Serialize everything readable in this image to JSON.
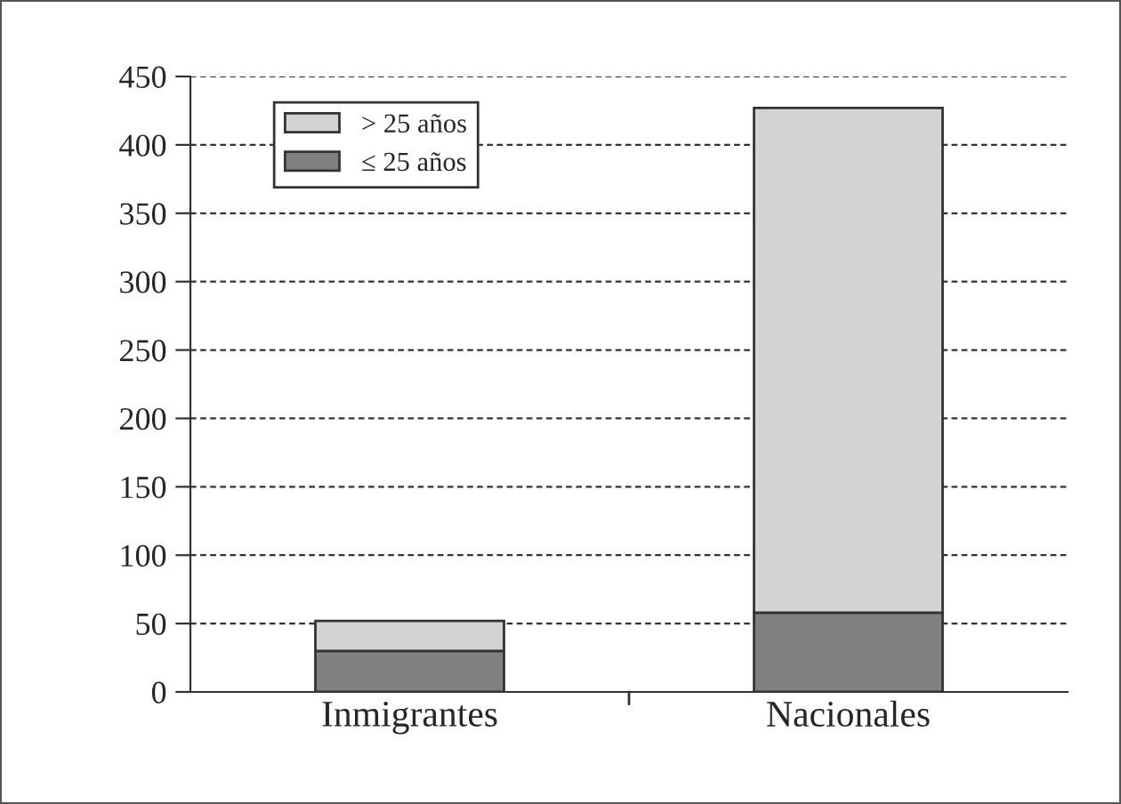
{
  "chart_data": {
    "type": "bar",
    "stacked": true,
    "categories": [
      "Inmigrantes",
      "Nacionales"
    ],
    "series": [
      {
        "name": "≤ 25 años",
        "color": "#808080",
        "values": [
          30,
          58
        ]
      },
      {
        "name": "> 25 años",
        "color": "#d3d3d3",
        "values": [
          22,
          369
        ]
      }
    ],
    "ylim": [
      0,
      450
    ],
    "yticks": [
      0,
      50,
      100,
      150,
      200,
      250,
      300,
      350,
      400,
      450
    ],
    "grid": "y",
    "legend": "top left"
  }
}
